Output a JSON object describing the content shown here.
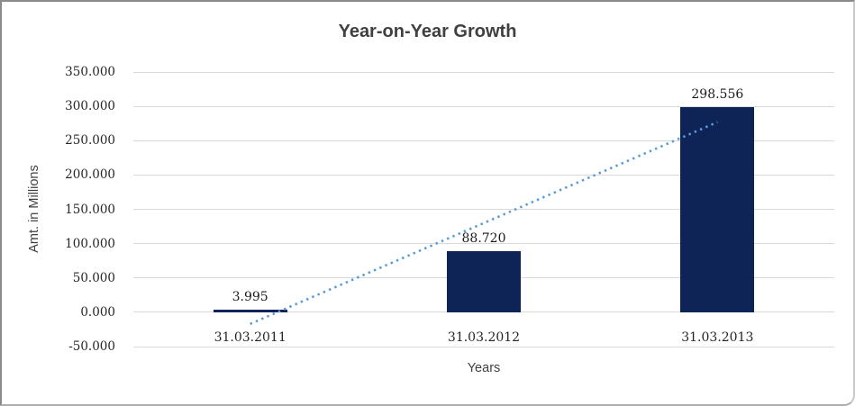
{
  "chart_data": {
    "type": "bar",
    "title": "Year-on-Year Growth",
    "xlabel": "Years",
    "ylabel": "Amt. in Millions",
    "categories": [
      "31.03.2011",
      "31.03.2012",
      "31.03.2013"
    ],
    "values": [
      3.995,
      88.72,
      298.556
    ],
    "data_labels": [
      "3.995",
      "88.720",
      "298.556"
    ],
    "y_ticks": [
      {
        "label": "350.000",
        "value": 350
      },
      {
        "label": "300.000",
        "value": 300
      },
      {
        "label": "250.000",
        "value": 250
      },
      {
        "label": "200.000",
        "value": 200
      },
      {
        "label": "150.000",
        "value": 150
      },
      {
        "label": "100.000",
        "value": 100
      },
      {
        "label": "50.000",
        "value": 50
      },
      {
        "label": "0.000",
        "value": 0
      },
      {
        "label": "-50.000",
        "value": -50
      }
    ],
    "ylim": [
      -50,
      350
    ],
    "grid": true,
    "legend_position": "none",
    "bar_color": "#0e2456",
    "gridline_color": "#d9d9d9",
    "trendline": {
      "type": "linear",
      "style": "dotted",
      "color": "#5b9bd5",
      "start_category_index": 0,
      "start_value": -17,
      "end_category_index": 2,
      "end_value": 277
    }
  }
}
